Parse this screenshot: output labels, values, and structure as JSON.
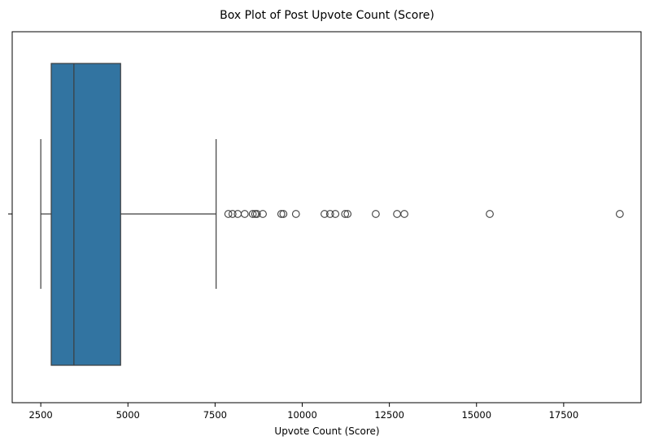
{
  "chart_data": {
    "type": "box",
    "title": "Box Plot of Post Upvote Count (Score)",
    "xlabel": "Upvote Count (Score)",
    "ylabel": "",
    "xlim": [
      1680,
      19720
    ],
    "xticks": [
      2500,
      5000,
      7500,
      10000,
      12500,
      15000,
      17500
    ],
    "xtick_labels": [
      "2500",
      "5000",
      "7500",
      "10000",
      "12500",
      "15000",
      "17500"
    ],
    "grid": false,
    "box": {
      "whisker_low": 2500,
      "q1": 2800,
      "median": 3450,
      "q3": 4790,
      "whisker_high": 7530,
      "color": "#3274a1",
      "edge_color": "#3d3d3d"
    },
    "outliers": [
      7880,
      8000,
      8150,
      8350,
      8580,
      8650,
      8700,
      8870,
      9400,
      9460,
      9820,
      10640,
      10800,
      10950,
      11230,
      11300,
      12110,
      12720,
      12930,
      15380,
      19110
    ]
  }
}
